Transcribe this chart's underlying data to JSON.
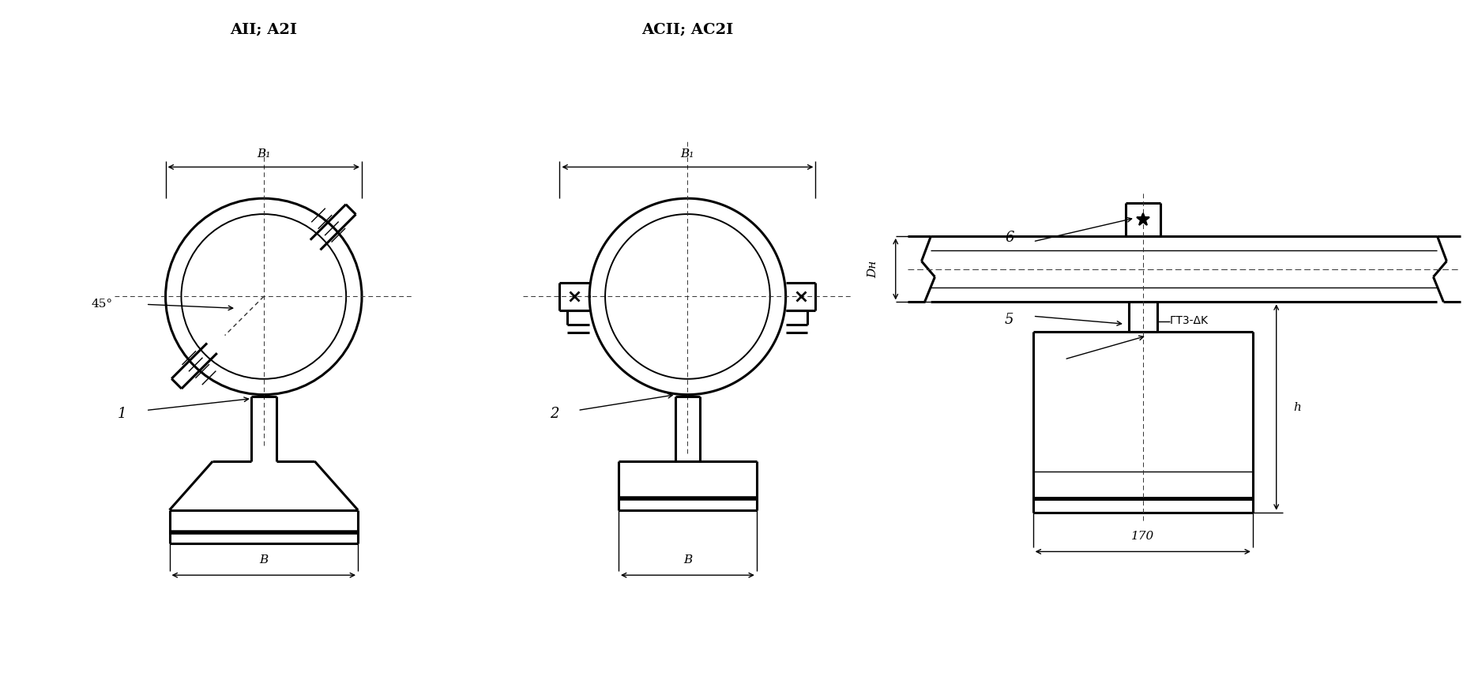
{
  "bg_color": "#ffffff",
  "line_color": "#000000",
  "fig_width": 18.71,
  "fig_height": 8.85,
  "title_left": "AII; A2I",
  "title_center": "ACII; AC2I",
  "label_B1": "B₁",
  "label_B": "B",
  "label_angle": "45°",
  "label_1": "1",
  "label_2": "2",
  "label_Dh": "Dн",
  "label_h": "h",
  "label_170": "170",
  "label_6": "6",
  "label_5": "5",
  "label_weld": "ГΤ3-ΔK"
}
